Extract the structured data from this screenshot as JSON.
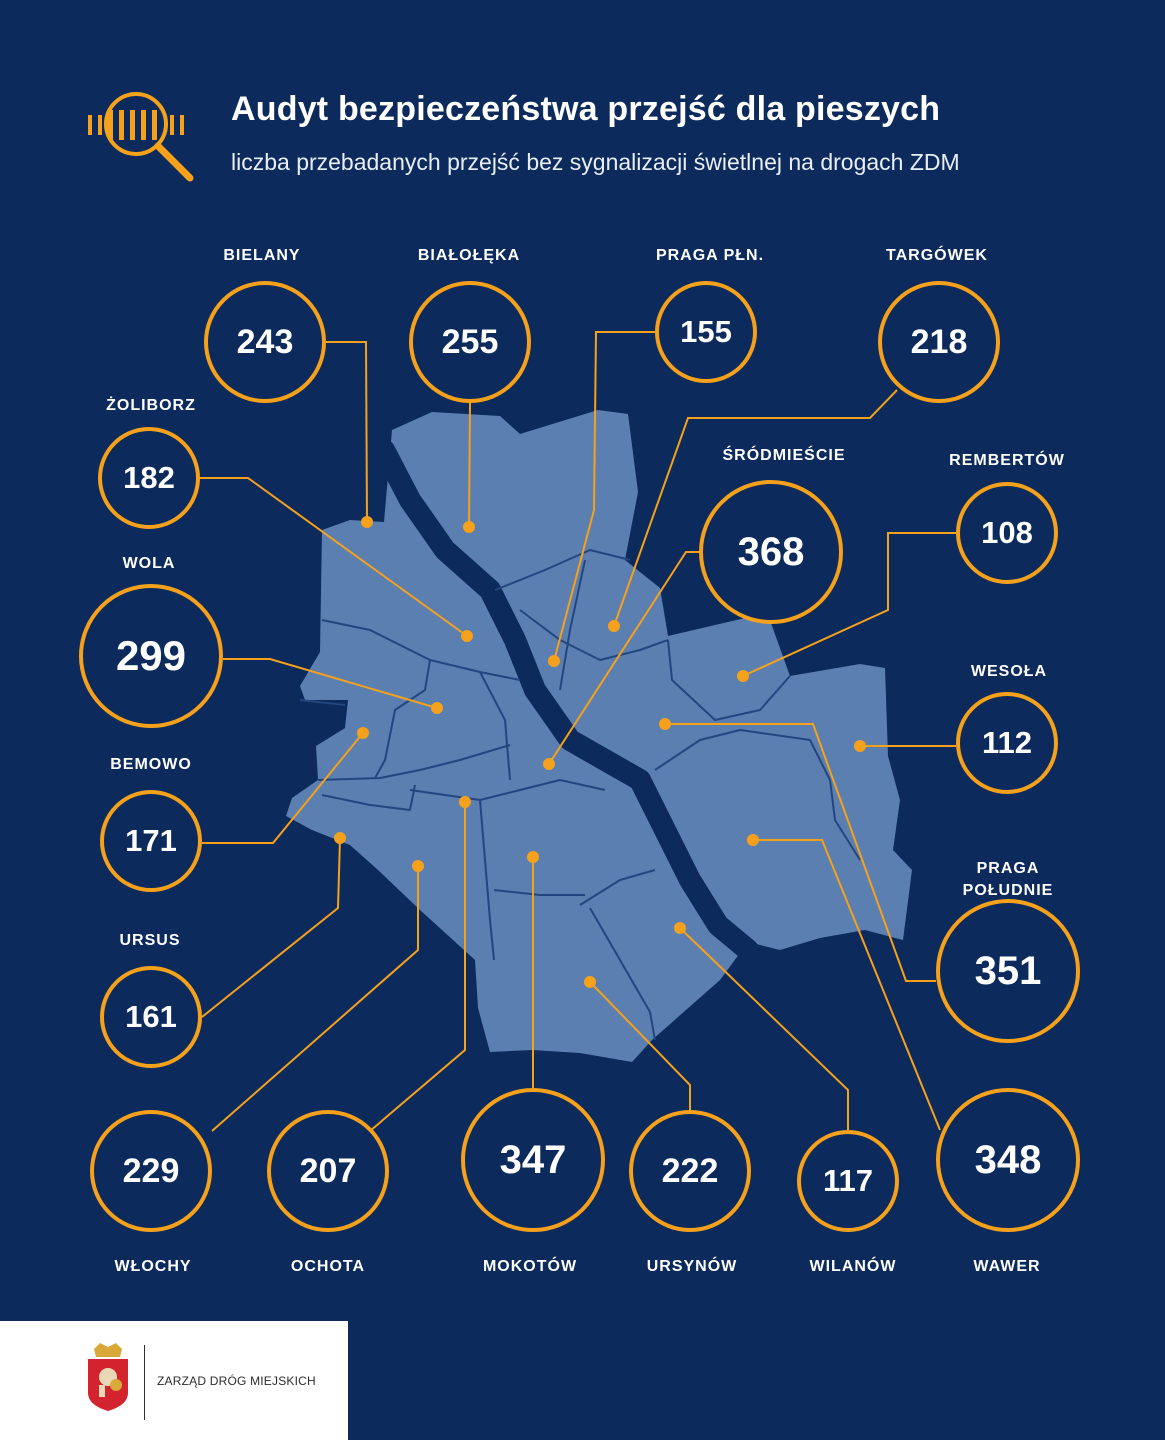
{
  "header": {
    "title": "Audyt bezpieczeństwa przejść dla pieszych",
    "subtitle": "liczba przebadanych przejść bez sygnalizacji świetlnej na drogach ZDM",
    "icon": "magnifier-crosswalk-icon"
  },
  "colors": {
    "background": "#0c2a5b",
    "map_fill": "#5b7fb1",
    "river": "#0c2a5b",
    "accent": "#f5a11c",
    "text": "#ffffff"
  },
  "districts": [
    {
      "id": "bielany",
      "name": "BIELANY",
      "value": 243
    },
    {
      "id": "bialoleka",
      "name": "BIAŁOŁĘKA",
      "value": 255
    },
    {
      "id": "praga-pln",
      "name": "PRAGA PŁN.",
      "value": 155
    },
    {
      "id": "targowek",
      "name": "TARGÓWEK",
      "value": 218
    },
    {
      "id": "zoliborz",
      "name": "ŻOLIBORZ",
      "value": 182
    },
    {
      "id": "srodmiescie",
      "name": "ŚRÓDMIEŚCIE",
      "value": 368
    },
    {
      "id": "rembertow",
      "name": "REMBERTÓW",
      "value": 108
    },
    {
      "id": "wola",
      "name": "WOLA",
      "value": 299
    },
    {
      "id": "wesola",
      "name": "WESOŁA",
      "value": 112
    },
    {
      "id": "bemowo",
      "name": "BEMOWO",
      "value": 171
    },
    {
      "id": "praga-pld",
      "name": "PRAGA POŁUDNIE",
      "value": 351
    },
    {
      "id": "ursus",
      "name": "URSUS",
      "value": 161
    },
    {
      "id": "wlochy",
      "name": "WŁOCHY",
      "value": 229
    },
    {
      "id": "ochota",
      "name": "OCHOTA",
      "value": 207
    },
    {
      "id": "mokotow",
      "name": "MOKOTÓW",
      "value": 347
    },
    {
      "id": "ursynow",
      "name": "URSYNÓW",
      "value": 222
    },
    {
      "id": "wilanow",
      "name": "WILANÓW",
      "value": 117
    },
    {
      "id": "wawer",
      "name": "WAWER",
      "value": 348
    }
  ],
  "footer": {
    "organization": "ZARZĄD DRÓG MIEJSKICH",
    "logo": "warsaw-crest-icon"
  }
}
